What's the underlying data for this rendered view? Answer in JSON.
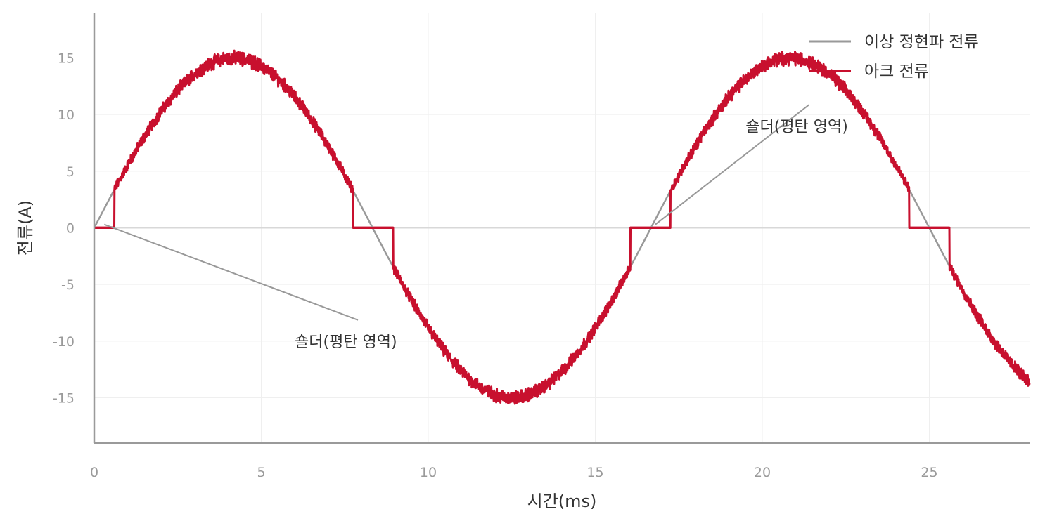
{
  "chart_data": {
    "type": "line",
    "title": "",
    "xlabel": "시간(ms)",
    "ylabel": "전류(A)",
    "xlim": [
      0,
      28
    ],
    "ylim": [
      -19,
      19
    ],
    "xticks": [
      0,
      5,
      10,
      15,
      20,
      25
    ],
    "yticks": [
      -15,
      -10,
      -5,
      0,
      5,
      10,
      15
    ],
    "grid": true,
    "legend_position": "top-right",
    "frequency_hz": 60,
    "amplitude_a": 15,
    "shoulder_threshold_a": 3.5,
    "series": [
      {
        "name": "이상 정현파 전류",
        "color": "#999999",
        "kind": "ideal_sine",
        "amplitude": 15
      },
      {
        "name": "아크 전류",
        "color": "#c8102e",
        "kind": "arc_current",
        "amplitude": 15,
        "shoulders": [
          [
            0,
            0.6
          ],
          [
            7.75,
            8.95
          ],
          [
            16.05,
            17.25
          ],
          [
            24.4,
            25.6
          ]
        ]
      }
    ],
    "annotations": [
      {
        "text": "숄더(평탄 영역)",
        "point_x": 0.3,
        "point_y": 0.3,
        "text_x": 6.0,
        "text_y": -10.0
      },
      {
        "text": "숄더(평탄 영역)",
        "point_x": 16.8,
        "point_y": 0.3,
        "text_x": 19.5,
        "text_y": 9.0
      }
    ]
  }
}
